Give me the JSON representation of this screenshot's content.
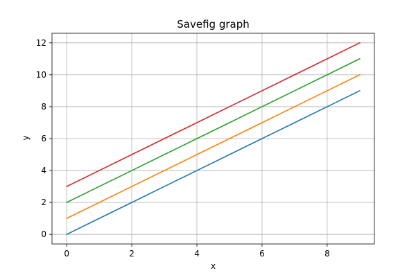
{
  "chart_data": {
    "type": "line",
    "title": "Savefig graph",
    "xlabel": "x",
    "ylabel": "y",
    "xlim": [
      -0.45,
      9.45
    ],
    "ylim": [
      -0.6,
      12.6
    ],
    "xticks": [
      0,
      2,
      4,
      6,
      8
    ],
    "yticks": [
      0,
      2,
      4,
      6,
      8,
      10,
      12
    ],
    "grid": true,
    "x": [
      0,
      1,
      2,
      3,
      4,
      5,
      6,
      7,
      8,
      9
    ],
    "series": [
      {
        "color": "#1f77b4",
        "values": [
          0,
          1,
          2,
          3,
          4,
          5,
          6,
          7,
          8,
          9
        ]
      },
      {
        "color": "#ff7f0e",
        "values": [
          1,
          2,
          3,
          4,
          5,
          6,
          7,
          8,
          9,
          10
        ]
      },
      {
        "color": "#2ca02c",
        "values": [
          2,
          3,
          4,
          5,
          6,
          7,
          8,
          9,
          10,
          11
        ]
      },
      {
        "color": "#d62728",
        "values": [
          3,
          4,
          5,
          6,
          7,
          8,
          9,
          10,
          11,
          12
        ]
      }
    ]
  }
}
